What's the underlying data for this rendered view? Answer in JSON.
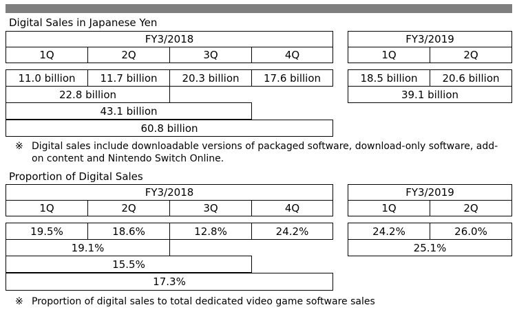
{
  "section1": {
    "title": "Digital Sales in Japanese Yen",
    "fy2018": {
      "label": "FY3/2018",
      "quarters": [
        "1Q",
        "2Q",
        "3Q",
        "4Q"
      ],
      "values": [
        "11.0 billion",
        "11.7 billion",
        "20.3 billion",
        "17.6 billion"
      ],
      "h1": "22.8 billion",
      "nine_months": "43.1 billion",
      "full_year": "60.8 billion"
    },
    "fy2019": {
      "label": "FY3/2019",
      "quarters": [
        "1Q",
        "2Q"
      ],
      "values": [
        "18.5 billion",
        "20.6 billion"
      ],
      "h1": "39.1 billion"
    },
    "note_mark": "※",
    "note": "Digital sales include downloadable versions of packaged software, download-only software, add-on content and Nintendo Switch Online."
  },
  "section2": {
    "title": "Proportion of Digital Sales",
    "fy2018": {
      "label": "FY3/2018",
      "quarters": [
        "1Q",
        "2Q",
        "3Q",
        "4Q"
      ],
      "values": [
        "19.5%",
        "18.6%",
        "12.8%",
        "24.2%"
      ],
      "h1": "19.1%",
      "nine_months": "15.5%",
      "full_year": "17.3%"
    },
    "fy2019": {
      "label": "FY3/2019",
      "quarters": [
        "1Q",
        "2Q"
      ],
      "values": [
        "24.2%",
        "26.0%"
      ],
      "h1": "25.1%"
    },
    "note_mark": "※",
    "note": "Proportion of digital sales to total dedicated video game software sales"
  }
}
